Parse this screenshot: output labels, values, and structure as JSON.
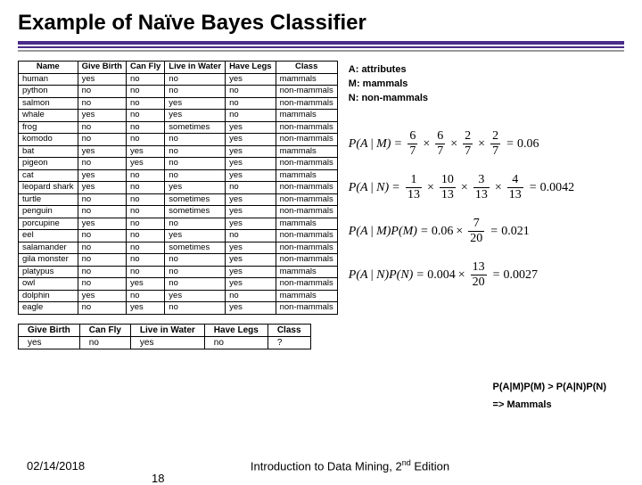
{
  "title": "Example of Naïve Bayes Classifier",
  "title_fontsize": 24,
  "rule_colors": {
    "purple": "#4a2a8a",
    "gray": "#999999"
  },
  "mainTable": {
    "columns": [
      "Name",
      "Give Birth",
      "Can Fly",
      "Live in Water",
      "Have Legs",
      "Class"
    ],
    "rows": [
      [
        "human",
        "yes",
        "no",
        "no",
        "yes",
        "mammals"
      ],
      [
        "python",
        "no",
        "no",
        "no",
        "no",
        "non-mammals"
      ],
      [
        "salmon",
        "no",
        "no",
        "yes",
        "no",
        "non-mammals"
      ],
      [
        "whale",
        "yes",
        "no",
        "yes",
        "no",
        "mammals"
      ],
      [
        "frog",
        "no",
        "no",
        "sometimes",
        "yes",
        "non-mammals"
      ],
      [
        "komodo",
        "no",
        "no",
        "no",
        "yes",
        "non-mammals"
      ],
      [
        "bat",
        "yes",
        "yes",
        "no",
        "yes",
        "mammals"
      ],
      [
        "pigeon",
        "no",
        "yes",
        "no",
        "yes",
        "non-mammals"
      ],
      [
        "cat",
        "yes",
        "no",
        "no",
        "yes",
        "mammals"
      ],
      [
        "leopard shark",
        "yes",
        "no",
        "yes",
        "no",
        "non-mammals"
      ],
      [
        "turtle",
        "no",
        "no",
        "sometimes",
        "yes",
        "non-mammals"
      ],
      [
        "penguin",
        "no",
        "no",
        "sometimes",
        "yes",
        "non-mammals"
      ],
      [
        "porcupine",
        "yes",
        "no",
        "no",
        "yes",
        "mammals"
      ],
      [
        "eel",
        "no",
        "no",
        "yes",
        "no",
        "non-mammals"
      ],
      [
        "salamander",
        "no",
        "no",
        "sometimes",
        "yes",
        "non-mammals"
      ],
      [
        "gila monster",
        "no",
        "no",
        "no",
        "yes",
        "non-mammals"
      ],
      [
        "platypus",
        "no",
        "no",
        "no",
        "yes",
        "mammals"
      ],
      [
        "owl",
        "no",
        "yes",
        "no",
        "yes",
        "non-mammals"
      ],
      [
        "dolphin",
        "yes",
        "no",
        "yes",
        "no",
        "mammals"
      ],
      [
        "eagle",
        "no",
        "yes",
        "no",
        "yes",
        "non-mammals"
      ]
    ]
  },
  "legend": {
    "A": "A: attributes",
    "M": "M: mammals",
    "N": "N: non-mammals"
  },
  "eq1": {
    "lhs": "P(A | M)",
    "fracs": [
      [
        "6",
        "7"
      ],
      [
        "6",
        "7"
      ],
      [
        "2",
        "7"
      ],
      [
        "2",
        "7"
      ]
    ],
    "result": "0.06",
    "fontsize": 14
  },
  "eq2": {
    "lhs": "P(A | N)",
    "fracs": [
      [
        "1",
        "13"
      ],
      [
        "10",
        "13"
      ],
      [
        "3",
        "13"
      ],
      [
        "4",
        "13"
      ]
    ],
    "result": "0.0042",
    "fontsize": 14
  },
  "eq3": {
    "lhs": "P(A | M)P(M)",
    "base": "0.06",
    "frac": [
      "7",
      "20"
    ],
    "result": "0.021",
    "fontsize": 14
  },
  "eq4": {
    "lhs": "P(A | N)P(N)",
    "base": "0.004",
    "frac": [
      "13",
      "20"
    ],
    "result": "0.0027",
    "fontsize": 14
  },
  "bottomTable": {
    "columns": [
      "Give Birth",
      "Can Fly",
      "Live in Water",
      "Have Legs",
      "Class"
    ],
    "rows": [
      [
        "yes",
        "no",
        "yes",
        "no",
        "?"
      ]
    ]
  },
  "conclusion": {
    "line1": "P(A|M)P(M) > P(A|N)P(N)",
    "line2": "=> Mammals"
  },
  "footer": {
    "date": "02/14/2018",
    "text_prefix": "Introduction to Data Mining, 2",
    "text_sup": "nd",
    "text_suffix": " Edition",
    "page": "18"
  }
}
